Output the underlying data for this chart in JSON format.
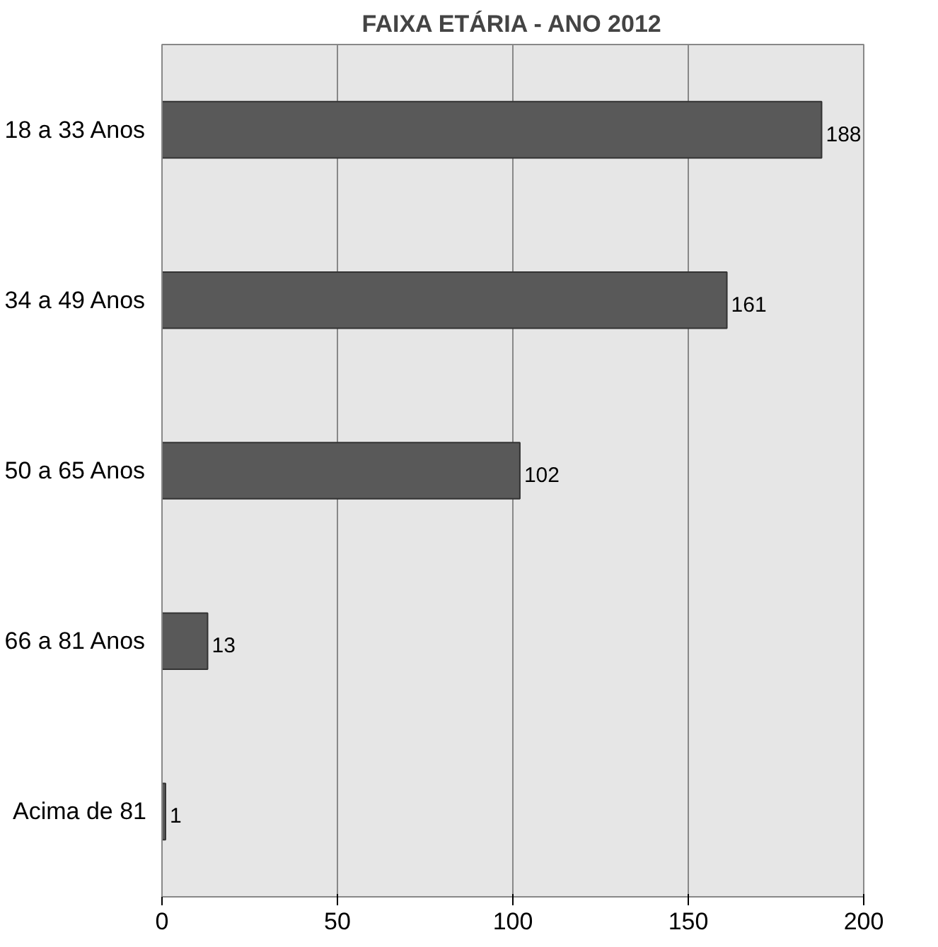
{
  "chart_data": {
    "type": "bar",
    "orientation": "horizontal",
    "title": "FAIXA ETÁRIA - ANO 2012",
    "categories": [
      "18 a 33 Anos",
      "34 a 49 Anos",
      "50 a 65 Anos",
      "66 a 81 Anos",
      "Acima de 81"
    ],
    "values": [
      188,
      161,
      102,
      13,
      1
    ],
    "color": "#595959",
    "xlim": [
      0,
      200
    ],
    "xticks": [
      0,
      50,
      100,
      150,
      200
    ],
    "grid": "x",
    "data_labels": true
  }
}
